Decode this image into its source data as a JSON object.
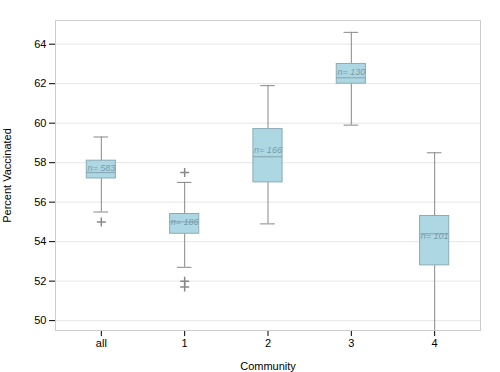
{
  "chart_data": {
    "type": "box",
    "categories": [
      "all",
      "1",
      "2",
      "3",
      "4"
    ],
    "q1": [
      57.2,
      54.4,
      57.0,
      62.0,
      52.8
    ],
    "median": [
      57.5,
      55.0,
      58.3,
      62.3,
      54.4
    ],
    "q3": [
      58.1,
      55.4,
      59.7,
      63.0,
      55.3
    ],
    "whisker_low": [
      55.5,
      52.7,
      54.9,
      59.9,
      49.5
    ],
    "whisker_high": [
      59.3,
      57.0,
      61.9,
      64.6,
      58.5
    ],
    "fliers": [
      [
        55.0
      ],
      [
        57.5,
        52.0,
        51.7
      ],
      [],
      [],
      []
    ],
    "box_labels": [
      "n= 583",
      "n= 186",
      "n= 166",
      "n= 130",
      "n= 101"
    ],
    "xlabel": "Community",
    "ylabel": "Percent Vaccinated",
    "ylim": [
      49.5,
      65.2
    ],
    "yticks": [
      50,
      52,
      54,
      56,
      58,
      60,
      62,
      64
    ],
    "grid": true,
    "color": "#add8e3"
  }
}
